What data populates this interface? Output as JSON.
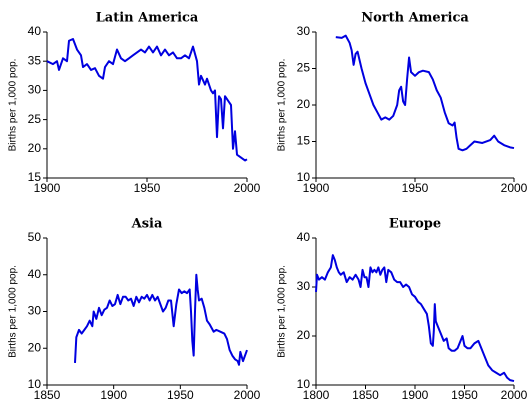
{
  "chart_data": [
    {
      "type": "line",
      "title": "Latin America",
      "ylabel": "Births per 1,000 pop.",
      "color": "#0000e0",
      "xlim": [
        1900,
        2000
      ],
      "xticks": [
        1900,
        1950,
        2000
      ],
      "ylim": [
        15,
        40
      ],
      "yticks": [
        15,
        20,
        25,
        30,
        35,
        40
      ],
      "x": [
        1900,
        1903,
        1905,
        1906,
        1908,
        1910,
        1911,
        1913,
        1915,
        1917,
        1918,
        1920,
        1922,
        1924,
        1926,
        1928,
        1929,
        1931,
        1933,
        1935,
        1937,
        1939,
        1941,
        1943,
        1945,
        1947,
        1949,
        1951,
        1953,
        1955,
        1957,
        1959,
        1961,
        1963,
        1965,
        1967,
        1969,
        1971,
        1973,
        1975,
        1976,
        1977,
        1979,
        1980,
        1982,
        1983,
        1984,
        1985,
        1986,
        1987,
        1988,
        1989,
        1991,
        1992,
        1993,
        1994,
        1995,
        1997,
        1999,
        2000
      ],
      "values": [
        35,
        34.5,
        35,
        33.5,
        35.5,
        35,
        38.5,
        38.8,
        37,
        36,
        34,
        34.5,
        33.5,
        33.8,
        32.5,
        32,
        34,
        35,
        34.5,
        37,
        35.5,
        35,
        35.5,
        36,
        36.5,
        37,
        36.5,
        37.5,
        36.5,
        37.5,
        36,
        37,
        36,
        36.5,
        35.5,
        35.5,
        36,
        35.5,
        37.5,
        35,
        31,
        32.5,
        31,
        32,
        30,
        29.5,
        30,
        22,
        29,
        28.5,
        23.5,
        29,
        28,
        27.5,
        20,
        23,
        19,
        18.5,
        18,
        18.2
      ]
    },
    {
      "type": "line",
      "title": "North America",
      "ylabel": "Births per 1,000 pop.",
      "color": "#0000e0",
      "xlim": [
        1900,
        2000
      ],
      "xticks": [
        1900,
        1950,
        2000
      ],
      "ylim": [
        10,
        30
      ],
      "yticks": [
        10,
        15,
        20,
        25,
        30
      ],
      "x": [
        1910,
        1913,
        1915,
        1917,
        1918,
        1919,
        1920,
        1921,
        1923,
        1925,
        1927,
        1929,
        1931,
        1933,
        1935,
        1937,
        1939,
        1941,
        1942,
        1943,
        1944,
        1945,
        1946,
        1947,
        1948,
        1950,
        1952,
        1954,
        1957,
        1959,
        1961,
        1963,
        1965,
        1967,
        1969,
        1970,
        1971,
        1972,
        1974,
        1976,
        1978,
        1980,
        1984,
        1988,
        1990,
        1992,
        1995,
        1998,
        2000
      ],
      "values": [
        29.3,
        29.2,
        29.5,
        28.5,
        27.5,
        25.5,
        27,
        27.3,
        25,
        23,
        21.5,
        20,
        19,
        18,
        18.3,
        18,
        18.5,
        20,
        22,
        22.5,
        20.5,
        20,
        23.5,
        26.5,
        24.5,
        24,
        24.5,
        24.7,
        24.5,
        23.5,
        22,
        21,
        19,
        17.5,
        17.2,
        17.6,
        15.5,
        14,
        13.8,
        14,
        14.5,
        15,
        14.8,
        15.2,
        15.8,
        15,
        14.5,
        14.2,
        14.1
      ]
    },
    {
      "type": "line",
      "title": "Asia",
      "ylabel": "Births per 1,000 pop.",
      "color": "#0000e0",
      "xlim": [
        1850,
        2000
      ],
      "xticks": [
        1850,
        1900,
        1950,
        2000
      ],
      "ylim": [
        10,
        50
      ],
      "yticks": [
        10,
        20,
        30,
        40,
        50
      ],
      "x": [
        1871,
        1872,
        1874,
        1876,
        1878,
        1880,
        1882,
        1884,
        1885,
        1887,
        1889,
        1891,
        1893,
        1895,
        1897,
        1899,
        1901,
        1903,
        1905,
        1907,
        1909,
        1911,
        1913,
        1915,
        1917,
        1919,
        1921,
        1923,
        1925,
        1927,
        1929,
        1931,
        1933,
        1935,
        1937,
        1939,
        1941,
        1943,
        1945,
        1947,
        1949,
        1951,
        1953,
        1955,
        1957,
        1958,
        1959,
        1960,
        1961,
        1962,
        1963,
        1964,
        1966,
        1968,
        1970,
        1972,
        1975,
        1977,
        1980,
        1983,
        1985,
        1987,
        1989,
        1991,
        1993,
        1994,
        1995,
        1997,
        2000
      ],
      "values": [
        16,
        23,
        25,
        24,
        25,
        26,
        27.5,
        26,
        30,
        28,
        31,
        29,
        30.5,
        31,
        33,
        31.5,
        32,
        34.5,
        32,
        34,
        34,
        33,
        33.5,
        31.5,
        34,
        32.5,
        34,
        33.5,
        34.5,
        33,
        34.5,
        33,
        34,
        32,
        30,
        31,
        33,
        33,
        26,
        32,
        36,
        35,
        35.5,
        35,
        36,
        30,
        22,
        18,
        30,
        40,
        36,
        33,
        33.5,
        31,
        27.5,
        26.5,
        24.5,
        25,
        24.5,
        24,
        22.5,
        19.5,
        18,
        17,
        16.5,
        15.5,
        19,
        16.5,
        19.5
      ]
    },
    {
      "type": "line",
      "title": "Europe",
      "ylabel": "Births per 1,000 pop.",
      "color": "#0000e0",
      "xlim": [
        1800,
        2000
      ],
      "xticks": [
        1800,
        1850,
        1900,
        1950,
        2000
      ],
      "ylim": [
        10,
        40
      ],
      "yticks": [
        10,
        20,
        30,
        40
      ],
      "x": [
        1800,
        1801,
        1803,
        1806,
        1809,
        1812,
        1815,
        1817,
        1819,
        1821,
        1823,
        1825,
        1828,
        1831,
        1834,
        1837,
        1840,
        1843,
        1845,
        1847,
        1849,
        1851,
        1853,
        1855,
        1857,
        1859,
        1861,
        1863,
        1865,
        1867,
        1869,
        1871,
        1873,
        1876,
        1879,
        1882,
        1885,
        1888,
        1891,
        1894,
        1897,
        1900,
        1903,
        1906,
        1909,
        1912,
        1914,
        1916,
        1918,
        1919,
        1920,
        1921,
        1923,
        1926,
        1929,
        1932,
        1934,
        1937,
        1940,
        1943,
        1946,
        1948,
        1950,
        1953,
        1956,
        1960,
        1964,
        1967,
        1970,
        1974,
        1978,
        1982,
        1986,
        1990,
        1993,
        1996,
        2000
      ],
      "values": [
        29,
        32.5,
        31.5,
        32,
        31.5,
        33,
        34,
        36.5,
        35.5,
        34,
        33,
        32.5,
        33,
        31,
        32,
        31.5,
        32.5,
        31.5,
        30,
        33.5,
        32,
        32,
        30,
        34,
        33,
        33.5,
        33,
        34,
        32.5,
        33.5,
        34,
        31,
        33.5,
        33,
        31.5,
        31,
        31,
        30,
        30.5,
        30,
        28.5,
        28,
        27,
        26.5,
        25.5,
        24.5,
        22,
        18.5,
        18,
        21,
        26.5,
        23,
        22,
        20.5,
        19,
        19.5,
        17.5,
        17,
        17,
        17.5,
        19,
        20,
        18,
        17.5,
        17.5,
        18.5,
        19,
        17.5,
        16,
        14,
        13,
        12.5,
        12,
        12.5,
        11.5,
        11,
        10.8
      ]
    }
  ]
}
